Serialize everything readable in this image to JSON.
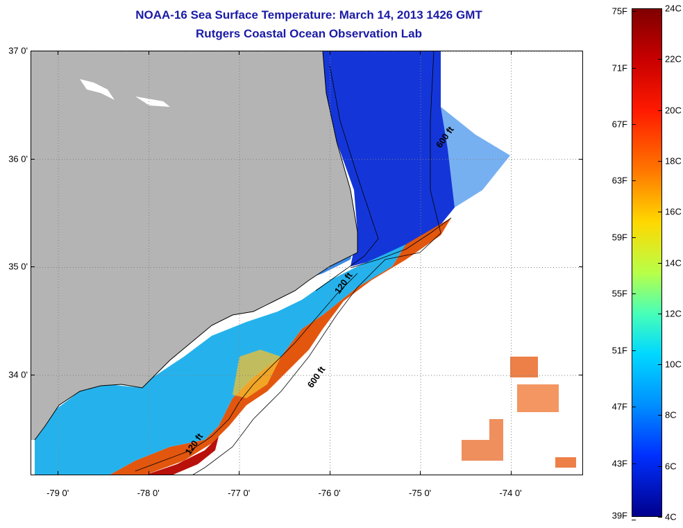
{
  "header": {
    "title": "NOAA-16 Sea Surface Temperature:  March 14, 2013 1426 GMT",
    "subtitle": "Rutgers Coastal Ocean Observation Lab"
  },
  "map": {
    "lat_range": [
      33.07,
      37.0
    ],
    "lon_range": [
      -79.3,
      -73.2
    ],
    "lat_ticks": [
      {
        "value": 37.0,
        "label": "37 0'"
      },
      {
        "value": 36.0,
        "label": "36 0'"
      },
      {
        "value": 35.0,
        "label": "35 0'"
      },
      {
        "value": 34.0,
        "label": "34 0'"
      }
    ],
    "lon_ticks": [
      {
        "value": -79.0,
        "label": "-79 0'"
      },
      {
        "value": -78.0,
        "label": "-78 0'"
      },
      {
        "value": -77.0,
        "label": "-77 0'"
      },
      {
        "value": -76.0,
        "label": "-76 0'"
      },
      {
        "value": -75.0,
        "label": "-75 0'"
      },
      {
        "value": -74.0,
        "label": "-74 0'"
      }
    ],
    "contour_labels": [
      {
        "text": "600 ft",
        "lon": -74.78,
        "lat": 36.1
      },
      {
        "text": "120 ft",
        "lon": -75.9,
        "lat": 34.75
      },
      {
        "text": "600 ft",
        "lon": -76.2,
        "lat": 33.88
      },
      {
        "text": "120 ft",
        "lon": -77.55,
        "lat": 33.26
      }
    ],
    "colors": {
      "land": "#b4b4b4",
      "ocean_no_data": "#ffffff",
      "contour": "#000000",
      "grid": "#808080"
    }
  },
  "colorbar": {
    "fahrenheit_labels": [
      "75F",
      "71F",
      "67F",
      "63F",
      "59F",
      "55F",
      "51F",
      "47F",
      "43F",
      "39F"
    ],
    "celsius_labels": [
      "24C",
      "22C",
      "20C",
      "18C",
      "16C",
      "14C",
      "12C",
      "10C",
      "8C",
      "6C",
      "4C"
    ],
    "range_c": [
      4,
      24
    ],
    "colors": [
      "#800000",
      "#ff1a00",
      "#ff7800",
      "#ffd800",
      "#48ffb8",
      "#00d8ff",
      "#0030ff",
      "#00008c"
    ]
  }
}
